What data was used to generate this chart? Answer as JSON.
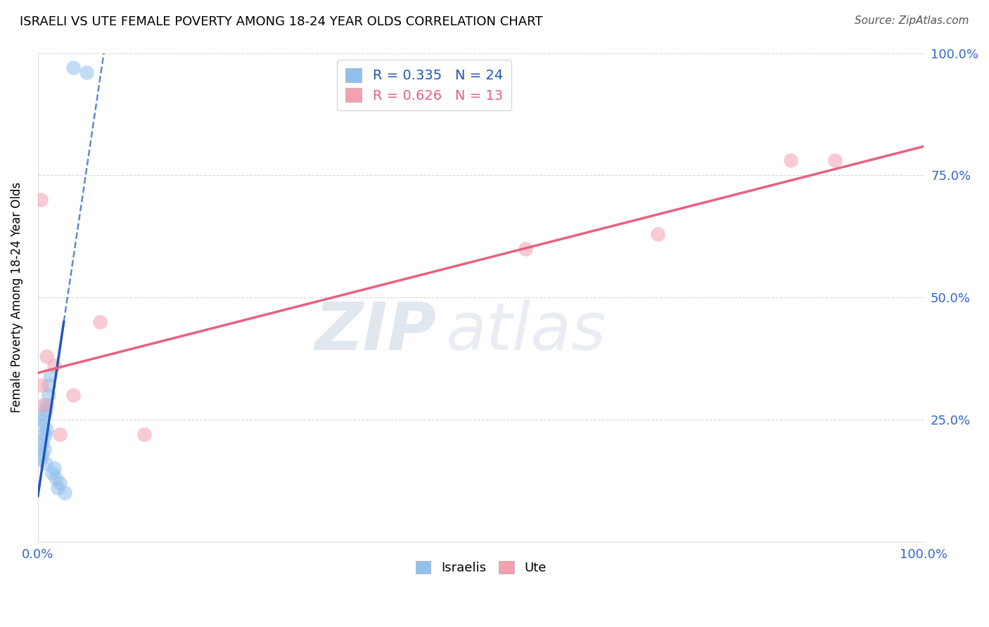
{
  "title": "ISRAELI VS UTE FEMALE POVERTY AMONG 18-24 YEAR OLDS CORRELATION CHART",
  "source": "Source: ZipAtlas.com",
  "ylabel": "Female Poverty Among 18-24 Year Olds",
  "xlim": [
    0.0,
    1.0
  ],
  "ylim": [
    0.0,
    1.0
  ],
  "xticks": [
    0.0,
    0.25,
    0.5,
    0.75,
    1.0
  ],
  "yticks": [
    0.0,
    0.25,
    0.5,
    0.75,
    1.0
  ],
  "israeli_R": 0.335,
  "israeli_N": 24,
  "ute_R": 0.626,
  "ute_N": 13,
  "israeli_color": "#90C0EE",
  "ute_color": "#F4A0B0",
  "israeli_line_color": "#2255BB",
  "ute_line_color": "#E86080",
  "israeli_x": [
    0.003,
    0.005,
    0.007,
    0.009,
    0.004,
    0.006,
    0.008,
    0.01,
    0.003,
    0.005,
    0.007,
    0.009,
    0.012,
    0.014,
    0.016,
    0.018,
    0.01,
    0.012,
    0.02,
    0.025,
    0.04,
    0.055,
    0.03,
    0.022
  ],
  "israeli_y": [
    0.24,
    0.25,
    0.26,
    0.27,
    0.2,
    0.21,
    0.22,
    0.23,
    0.17,
    0.18,
    0.19,
    0.16,
    0.32,
    0.34,
    0.14,
    0.15,
    0.28,
    0.3,
    0.13,
    0.12,
    0.97,
    0.96,
    0.1,
    0.11
  ],
  "ute_x": [
    0.004,
    0.006,
    0.01,
    0.018,
    0.025,
    0.04,
    0.07,
    0.12,
    0.55,
    0.7,
    0.85,
    0.9,
    0.003
  ],
  "ute_y": [
    0.32,
    0.28,
    0.38,
    0.36,
    0.22,
    0.3,
    0.45,
    0.22,
    0.6,
    0.63,
    0.78,
    0.78,
    0.7
  ],
  "israeli_line_x0": 0.0,
  "israeli_line_x1": 0.21,
  "israeli_line_solid_x0": 0.08,
  "israeli_line_solid_x1": 0.21,
  "ute_line_x0": 0.0,
  "ute_line_x1": 1.0,
  "ute_line_y0": 0.3,
  "ute_line_y1": 0.78
}
